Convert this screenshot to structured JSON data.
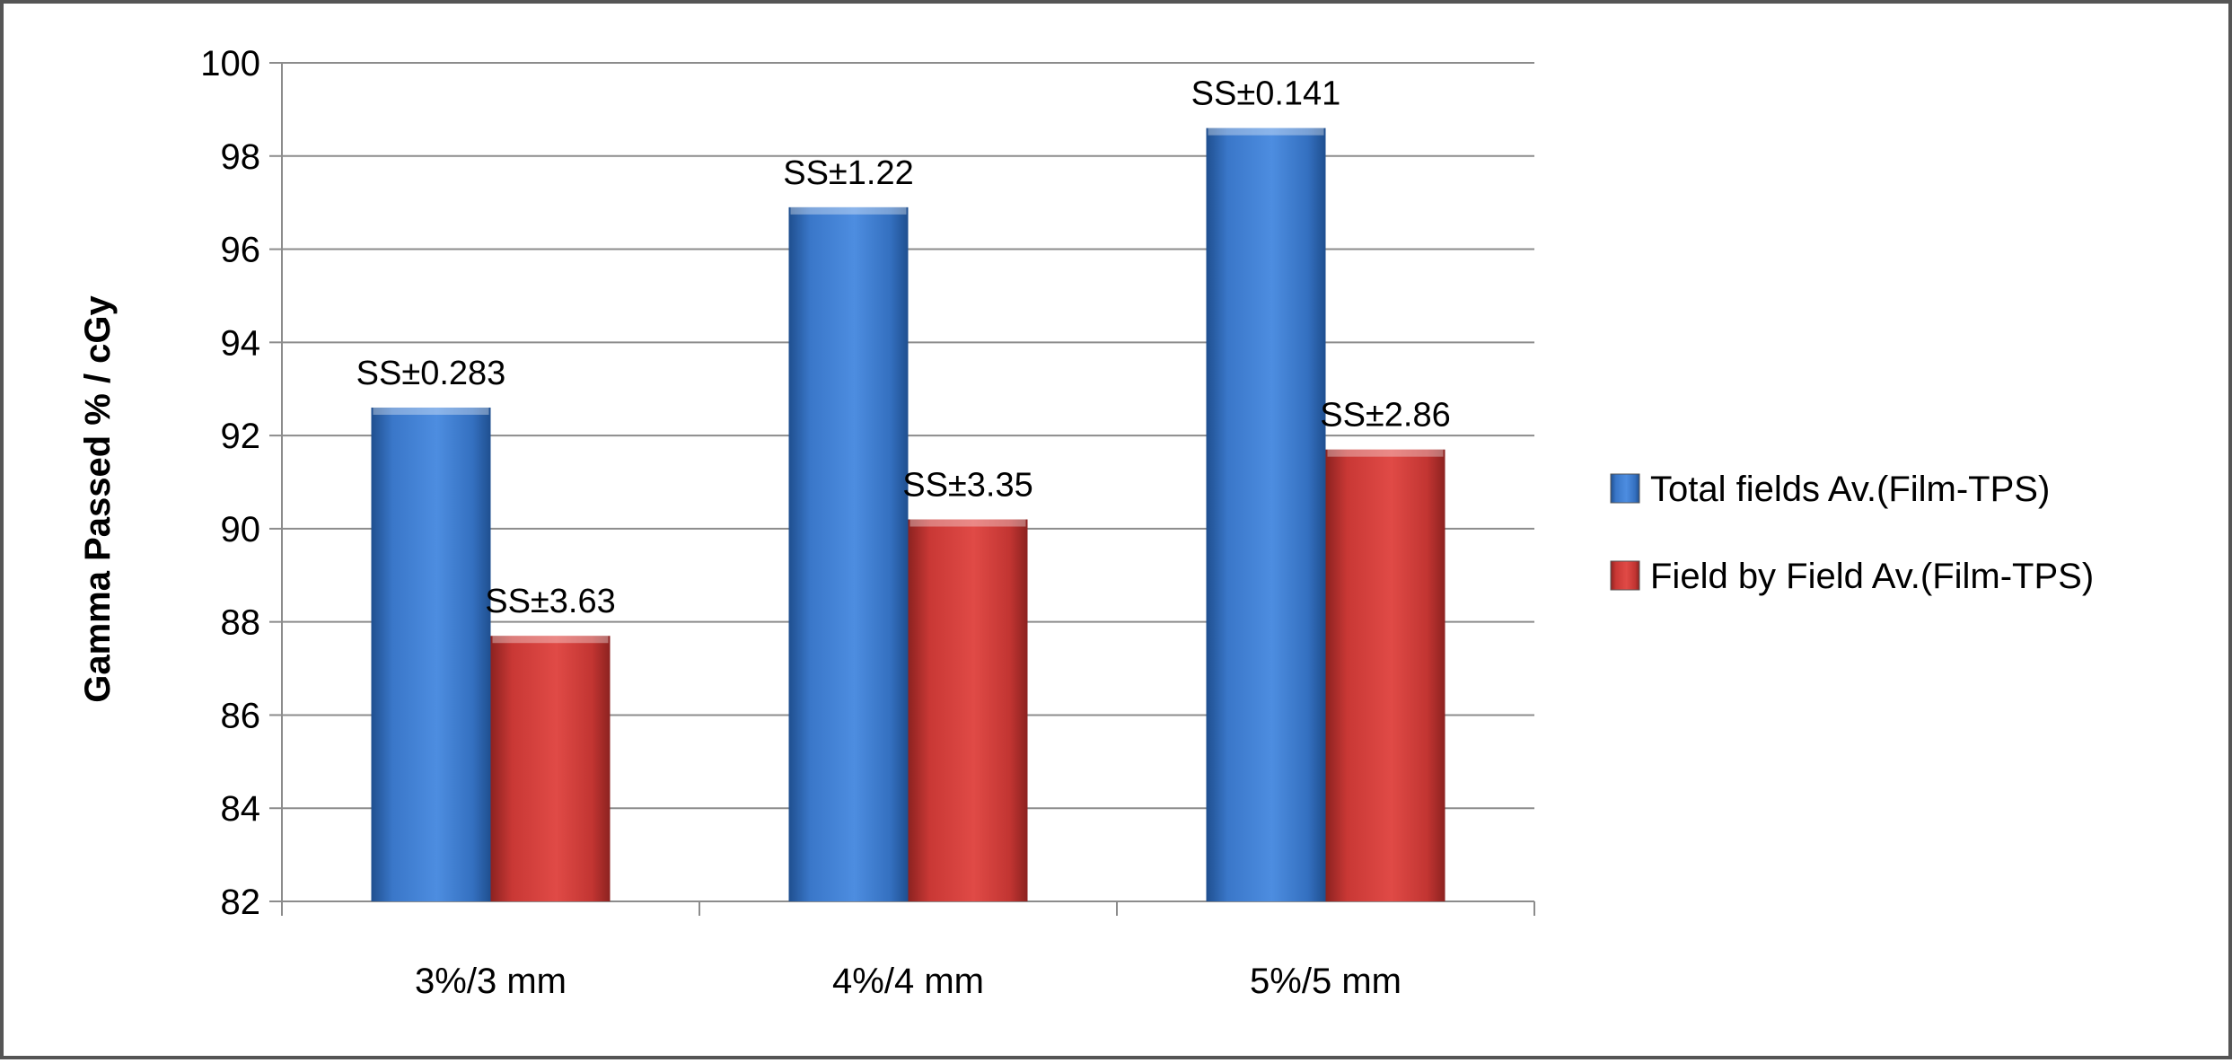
{
  "chart_data": {
    "type": "bar",
    "title": "",
    "xlabel": "",
    "ylabel": "Gamma Passed % / cGy",
    "categories": [
      "3%/3 mm",
      "4%/4 mm",
      "5%/5 mm"
    ],
    "series": [
      {
        "name": "Total fields Av.(Film-TPS)",
        "color": "#3a77c9",
        "values": [
          92.6,
          96.9,
          98.6
        ],
        "labels": [
          "SS±0.283",
          "SS±1.22",
          "SS±0.141"
        ]
      },
      {
        "name": "Field by Field Av.(Film-TPS)",
        "color": "#cc3b38",
        "values": [
          87.7,
          90.2,
          91.7
        ],
        "labels": [
          "SS±3.63",
          "SS±3.35",
          "SS±2.86"
        ]
      }
    ],
    "ylim": [
      82,
      100
    ],
    "yticks": [
      82,
      84,
      86,
      88,
      90,
      92,
      94,
      96,
      98,
      100
    ],
    "grid": true,
    "legend": "right"
  }
}
